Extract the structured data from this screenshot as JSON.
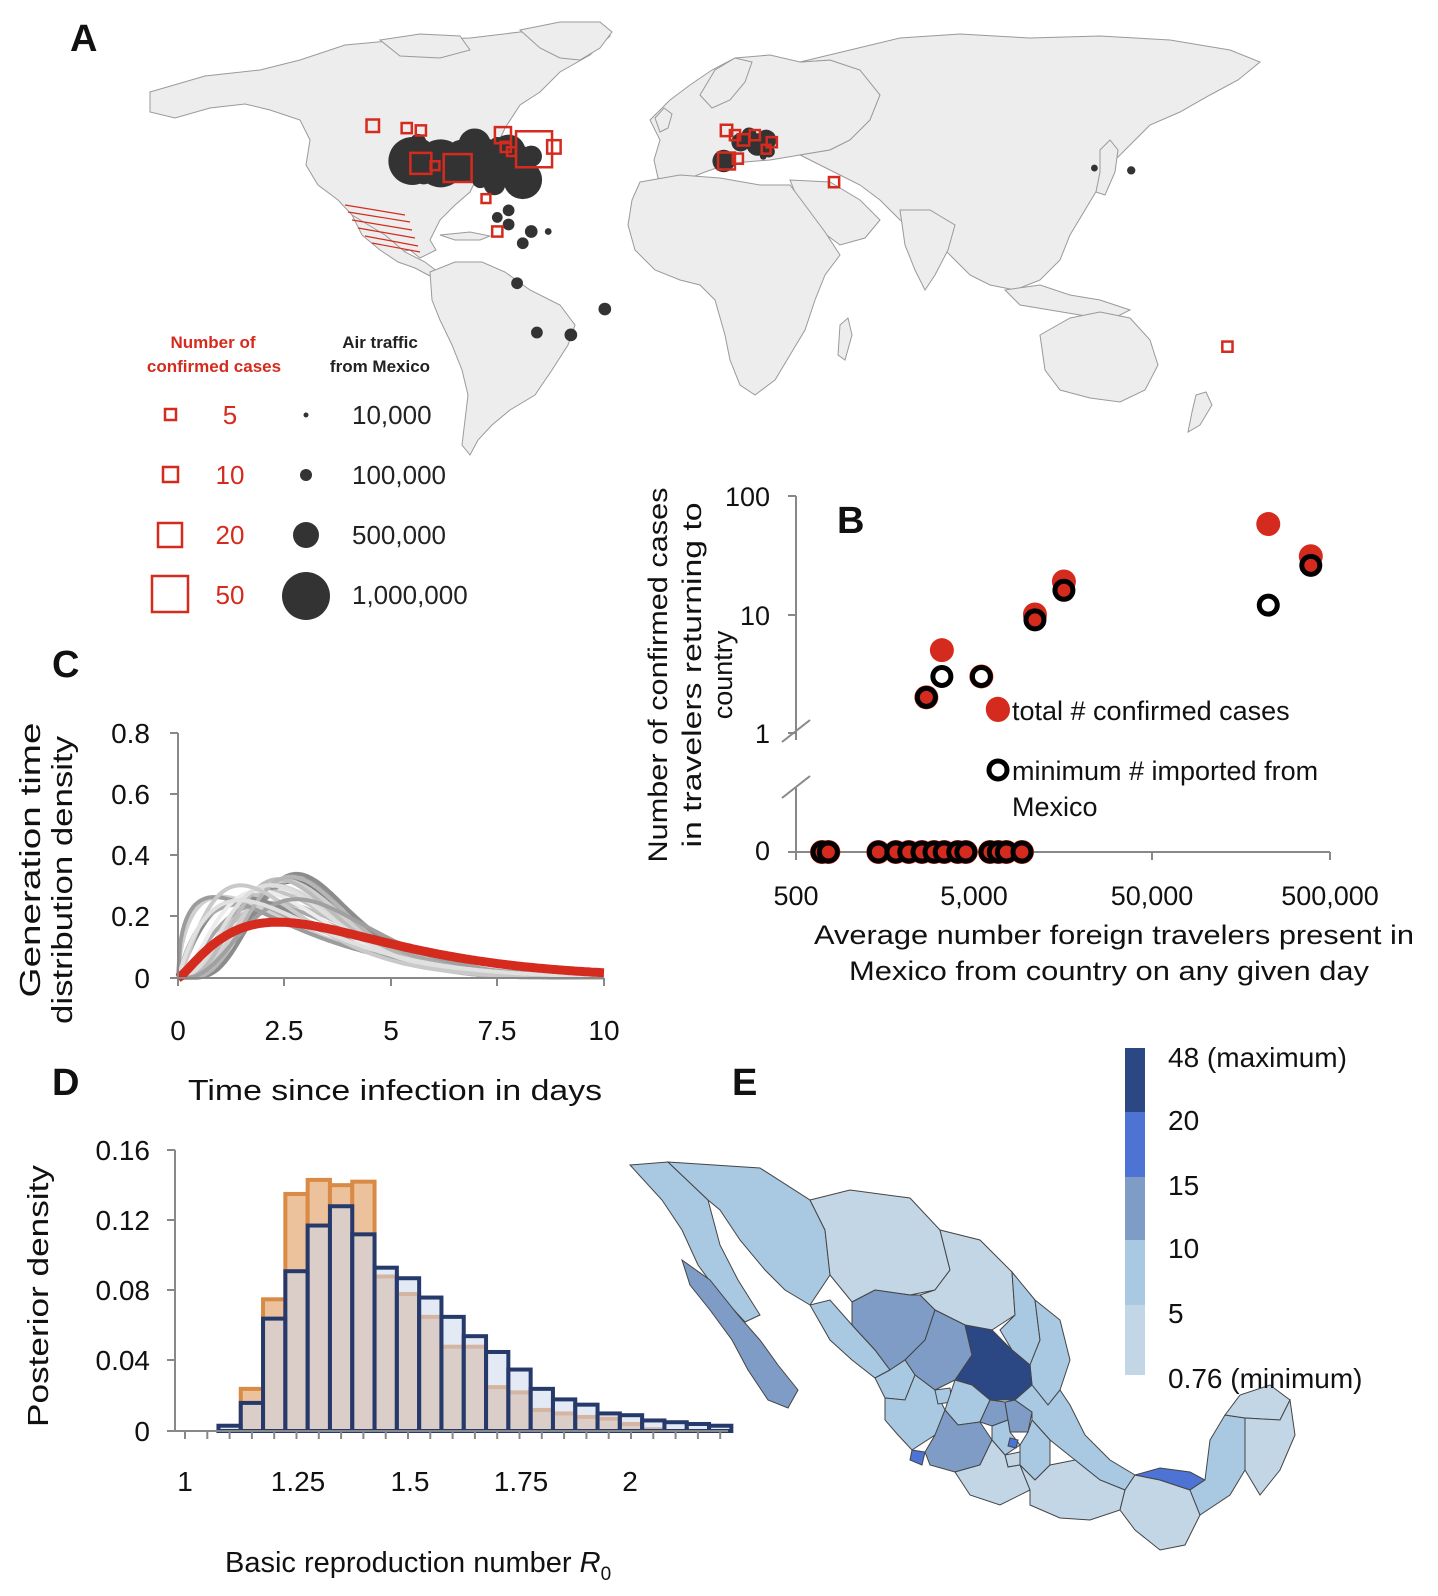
{
  "panel_labels": {
    "a": "A",
    "b": "B",
    "c": "C",
    "d": "D",
    "e": "E"
  },
  "colors": {
    "case_red": "#d52b1e",
    "traffic_dark": "#333333",
    "land": "#ededed",
    "border": "#9a9a9a",
    "hist_orange": "#d98a45",
    "hist_navy": "#26396b",
    "hist_light_blue": "#cdd8ec",
    "mexico_scale": [
      "#c2d6e6",
      "#a9c8e2",
      "#7e9cc6",
      "#4d73d4",
      "#2b4784"
    ]
  },
  "panel_a": {
    "legend": {
      "cases_title": [
        "Number of",
        "confirmed cases"
      ],
      "traffic_title": [
        "Air traffic",
        "from Mexico"
      ],
      "case_sizes": [
        "5",
        "10",
        "20",
        "50"
      ],
      "traffic_sizes": [
        "10,000",
        "100,000",
        "500,000",
        "1,000,000"
      ]
    },
    "case_squares": [
      {
        "lon": -128,
        "lat": 55,
        "n": 6
      },
      {
        "lon": -116,
        "lat": 54,
        "n": 4
      },
      {
        "lon": -111,
        "lat": 53,
        "n": 4
      },
      {
        "lon": -82,
        "lat": 51,
        "n": 10
      },
      {
        "lon": -71,
        "lat": 45,
        "n": 50
      },
      {
        "lon": -64,
        "lat": 46,
        "n": 7
      },
      {
        "lon": -81,
        "lat": 46,
        "n": 4
      },
      {
        "lon": -79,
        "lat": 44,
        "n": 3
      },
      {
        "lon": -111,
        "lat": 39,
        "n": 17
      },
      {
        "lon": -106,
        "lat": 38,
        "n": 3
      },
      {
        "lon": -98,
        "lat": 37,
        "n": 30
      },
      {
        "lon": -88,
        "lat": 24,
        "n": 3
      },
      {
        "lon": -84,
        "lat": 10,
        "n": 4
      },
      {
        "lon": -3,
        "lat": 53,
        "n": 5
      },
      {
        "lon": 0,
        "lat": 51,
        "n": 4
      },
      {
        "lon": 3,
        "lat": 49,
        "n": 5
      },
      {
        "lon": 7,
        "lat": 51,
        "n": 4
      },
      {
        "lon": 13,
        "lat": 48,
        "n": 4
      },
      {
        "lon": 11,
        "lat": 45,
        "n": 3
      },
      {
        "lon": -3,
        "lat": 40,
        "n": 11
      },
      {
        "lon": 1,
        "lat": 41,
        "n": 4
      },
      {
        "lon": 35,
        "lat": 31,
        "n": 4
      },
      {
        "lon": 174,
        "lat": -39,
        "n": 4
      }
    ],
    "traffic_dots": [
      {
        "lon": -112,
        "lat": 48,
        "t": 120000
      },
      {
        "lon": -110,
        "lat": 46,
        "t": 90000
      },
      {
        "lon": -104,
        "lat": 44,
        "t": 60000
      },
      {
        "lon": -92,
        "lat": 47,
        "t": 450000
      },
      {
        "lon": -88,
        "lat": 44,
        "t": 300000
      },
      {
        "lon": -84,
        "lat": 47,
        "t": 100000
      },
      {
        "lon": -80,
        "lat": 44,
        "t": 500000
      },
      {
        "lon": -76,
        "lat": 41,
        "t": 300000
      },
      {
        "lon": -72,
        "lat": 42,
        "t": 200000
      },
      {
        "lon": -97,
        "lat": 42,
        "t": 40000
      },
      {
        "lon": -114,
        "lat": 40,
        "t": 1000000
      },
      {
        "lon": -104,
        "lat": 39,
        "t": 1000000
      },
      {
        "lon": -96,
        "lat": 40,
        "t": 800000
      },
      {
        "lon": -86,
        "lat": 37,
        "t": 600000
      },
      {
        "lon": -80,
        "lat": 40,
        "t": 600000
      },
      {
        "lon": -77,
        "lat": 35,
        "t": 250000
      },
      {
        "lon": -75,
        "lat": 32,
        "t": 650000
      },
      {
        "lon": -85,
        "lat": 30,
        "t": 200000
      },
      {
        "lon": -110,
        "lat": 34,
        "t": 150000
      },
      {
        "lon": -90,
        "lat": 32,
        "t": 120000
      },
      {
        "lon": -80,
        "lat": 19,
        "t": 60000
      },
      {
        "lon": -84,
        "lat": 16,
        "t": 50000
      },
      {
        "lon": -80,
        "lat": 13,
        "t": 60000
      },
      {
        "lon": -72,
        "lat": 10,
        "t": 70000
      },
      {
        "lon": -66,
        "lat": 10,
        "t": 20000
      },
      {
        "lon": -75,
        "lat": 5,
        "t": 60000
      },
      {
        "lon": -77,
        "lat": -12,
        "t": 60000
      },
      {
        "lon": -70,
        "lat": -33,
        "t": 60000
      },
      {
        "lon": -58,
        "lat": -34,
        "t": 70000
      },
      {
        "lon": -46,
        "lat": -23,
        "t": 70000
      },
      {
        "lon": 2,
        "lat": 48,
        "t": 150000
      },
      {
        "lon": 5,
        "lat": 51,
        "t": 100000
      },
      {
        "lon": 8,
        "lat": 47,
        "t": 220000
      },
      {
        "lon": 10,
        "lat": 47,
        "t": 120000
      },
      {
        "lon": 11,
        "lat": 49,
        "t": 180000
      },
      {
        "lon": 12,
        "lat": 44,
        "t": 60000
      },
      {
        "lon": -4,
        "lat": 40,
        "t": 220000
      },
      {
        "lon": 10,
        "lat": 42,
        "t": 20000
      },
      {
        "lon": 127,
        "lat": 37,
        "t": 20000
      },
      {
        "lon": 140,
        "lat": 36,
        "t": 30000
      }
    ]
  },
  "chart_data": [
    {
      "panel": "B",
      "type": "scatter",
      "xlabel": "Average number foreign travelers present in Mexico from country on any given day",
      "ylabel": "Number of confirmed cases in travelers returning to country",
      "xscale": "log",
      "yscale": "log (with broken axis down to 0)",
      "xlim": [
        500,
        500000
      ],
      "x_ticks": [
        "500",
        "5,000",
        "50,000",
        "500,000"
      ],
      "y_ticks": [
        "100",
        "10",
        "1",
        "0"
      ],
      "legend_placement": "inside, right",
      "series": [
        {
          "name": "total # confirmed cases",
          "marker": "filled red circle",
          "points": [
            {
              "x": 2700,
              "y": 2
            },
            {
              "x": 3300,
              "y": 5
            },
            {
              "x": 5500,
              "y": 3
            },
            {
              "x": 6800,
              "y": 1.6
            },
            {
              "x": 11000,
              "y": 10
            },
            {
              "x": 16000,
              "y": 19
            },
            {
              "x": 225000,
              "y": 58
            },
            {
              "x": 390000,
              "y": 31
            },
            {
              "x": 700,
              "y": 0
            },
            {
              "x": 760,
              "y": 0
            },
            {
              "x": 1450,
              "y": 0
            },
            {
              "x": 1820,
              "y": 0
            },
            {
              "x": 2150,
              "y": 0
            },
            {
              "x": 2550,
              "y": 0
            },
            {
              "x": 2980,
              "y": 0
            },
            {
              "x": 3400,
              "y": 0
            },
            {
              "x": 4050,
              "y": 0
            },
            {
              "x": 4500,
              "y": 0
            },
            {
              "x": 6150,
              "y": 0
            },
            {
              "x": 6850,
              "y": 0
            },
            {
              "x": 7600,
              "y": 0
            },
            {
              "x": 9300,
              "y": 0
            }
          ]
        },
        {
          "name": "minimum #  imported from Mexico",
          "marker": "open black circle",
          "points": [
            {
              "x": 2700,
              "y": 2
            },
            {
              "x": 3300,
              "y": 3
            },
            {
              "x": 5500,
              "y": 3
            },
            {
              "x": 11000,
              "y": 9
            },
            {
              "x": 16000,
              "y": 16
            },
            {
              "x": 225000,
              "y": 12
            },
            {
              "x": 390000,
              "y": 26
            },
            {
              "x": 700,
              "y": 0
            },
            {
              "x": 760,
              "y": 0
            },
            {
              "x": 1450,
              "y": 0
            },
            {
              "x": 1820,
              "y": 0
            },
            {
              "x": 2150,
              "y": 0
            },
            {
              "x": 2550,
              "y": 0
            },
            {
              "x": 2980,
              "y": 0
            },
            {
              "x": 3400,
              "y": 0
            },
            {
              "x": 4050,
              "y": 0
            },
            {
              "x": 4500,
              "y": 0
            },
            {
              "x": 6150,
              "y": 0
            },
            {
              "x": 6850,
              "y": 0
            },
            {
              "x": 7600,
              "y": 0
            },
            {
              "x": 9300,
              "y": 0
            }
          ]
        }
      ],
      "legend_labels": [
        "total # confirmed cases",
        "minimum #  imported from",
        "Mexico"
      ]
    },
    {
      "panel": "C",
      "type": "line",
      "xlabel": "Time since infection in days",
      "ylabel": "Generation time distribution density",
      "xlim": [
        0,
        10
      ],
      "ylim": [
        0,
        0.8
      ],
      "x_ticks": [
        "0",
        "2.5",
        "5",
        "7.5",
        "10"
      ],
      "y_ticks": [
        "0",
        "0.2",
        "0.4",
        "0.6",
        "0.8"
      ],
      "highlighted_series": {
        "name": "",
        "color": "#d52b1e",
        "shape": 2.3,
        "scale": 1.8
      },
      "sample_curves": [
        {
          "shape": 3.2,
          "scale": 1.05,
          "gray": "#bdbdbd"
        },
        {
          "shape": 4.5,
          "scale": 0.72,
          "gray": "#e4e4e4"
        },
        {
          "shape": 5.6,
          "scale": 0.58,
          "gray": "#777777"
        },
        {
          "shape": 6.4,
          "scale": 0.52,
          "gray": "#9b9b9b"
        },
        {
          "shape": 6.8,
          "scale": 0.48,
          "gray": "#8c8c8c"
        },
        {
          "shape": 5.2,
          "scale": 0.6,
          "gray": "#cfcfcf"
        },
        {
          "shape": 4.2,
          "scale": 0.72,
          "gray": "#d6d6d6"
        },
        {
          "shape": 3.6,
          "scale": 0.85,
          "gray": "#c4c4c4"
        },
        {
          "shape": 2.7,
          "scale": 1.2,
          "gray": "#a8a8a8"
        },
        {
          "shape": 2.2,
          "scale": 1.3,
          "gray": "#8a8a8a"
        },
        {
          "shape": 1.9,
          "scale": 1.6,
          "gray": "#aaaaaa"
        },
        {
          "shape": 1.6,
          "scale": 1.7,
          "gray": "#d0d0d0"
        },
        {
          "shape": 1.45,
          "scale": 1.9,
          "gray": "#9c9c9c"
        },
        {
          "shape": 4.8,
          "scale": 0.62,
          "gray": "#bcbcbc"
        },
        {
          "shape": 3.0,
          "scale": 0.95,
          "gray": "#ececec"
        },
        {
          "shape": 6.0,
          "scale": 0.53,
          "gray": "#b5b5b5"
        },
        {
          "shape": 3.9,
          "scale": 0.75,
          "gray": "#dedede"
        },
        {
          "shape": 2.4,
          "scale": 1.05,
          "gray": "#c9c9c9"
        },
        {
          "shape": 4.4,
          "scale": 0.82,
          "gray": "#a0a0a0"
        },
        {
          "shape": 2.0,
          "scale": 1.45,
          "gray": "#e0e0e0"
        }
      ]
    },
    {
      "panel": "D",
      "type": "bar",
      "xlabel": "Basic reproduction number R0",
      "ylabel": "Posterior density",
      "xlim": [
        0.98,
        2.25
      ],
      "ylim": [
        0,
        0.16
      ],
      "x_ticks": [
        "1",
        "1.25",
        "1.5",
        "1.75",
        "2"
      ],
      "y_ticks": [
        "0",
        "0.04",
        "0.08",
        "0.12",
        "0.16"
      ],
      "bin_width": 0.05,
      "bin_starts": [
        1.075,
        1.125,
        1.175,
        1.225,
        1.275,
        1.325,
        1.375,
        1.425,
        1.475,
        1.525,
        1.575,
        1.625,
        1.675,
        1.725,
        1.775,
        1.825,
        1.875,
        1.925,
        1.975,
        2.025,
        2.075,
        2.125,
        2.175
      ],
      "series": [
        {
          "name": "",
          "color": "#d98a45",
          "values": [
            0,
            0.024,
            0.075,
            0.135,
            0.143,
            0.14,
            0.142,
            0.088,
            0.078,
            0.065,
            0.048,
            0.048,
            0.025,
            0.022,
            0.012,
            0.01,
            0.008,
            0.007,
            0.004,
            0.001,
            0,
            0,
            0
          ]
        },
        {
          "name": "",
          "color": "#26396b",
          "values": [
            0.003,
            0.016,
            0.064,
            0.091,
            0.117,
            0.128,
            0.112,
            0.093,
            0.087,
            0.076,
            0.065,
            0.054,
            0.045,
            0.035,
            0.024,
            0.018,
            0.015,
            0.01,
            0.009,
            0.006,
            0.005,
            0.004,
            0.003
          ]
        }
      ]
    }
  ],
  "panel_d": {
    "axis_title_main": "Basic reproduction number ",
    "axis_title_symbol": "R",
    "axis_title_sub": "0"
  },
  "panel_e": {
    "colorbar_labels": [
      "48 (maximum)",
      "20",
      "15",
      "10",
      "5",
      "0.76 (minimum)"
    ]
  }
}
